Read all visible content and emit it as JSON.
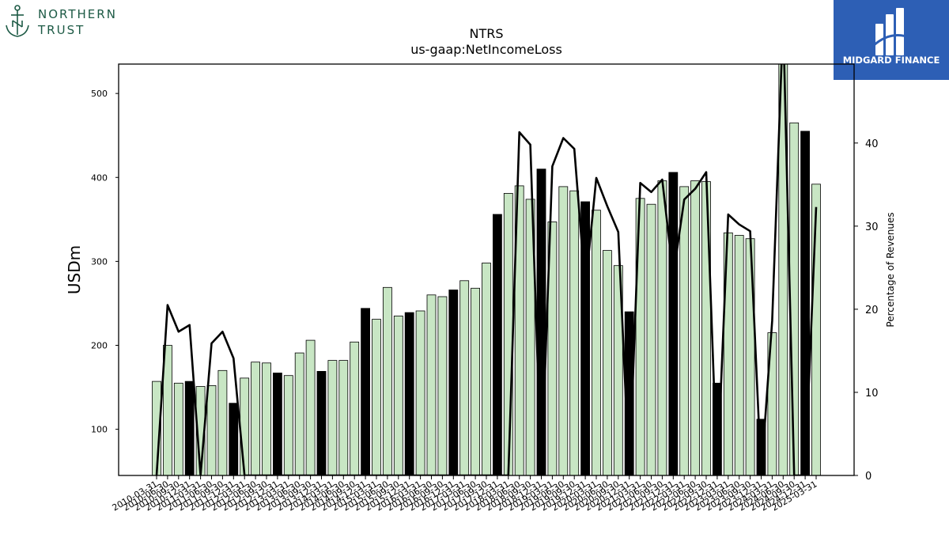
{
  "logos": {
    "left_brand_line1": "NORTHERN",
    "left_brand_line2": "TRUST",
    "right_brand": "MIDGARD FINANCE",
    "left_color": "#1d5a45",
    "right_bg": "#2d5fb5"
  },
  "chart_data": {
    "type": "bar",
    "title": "NTRS",
    "subtitle": "us-gaap:NetIncomeLoss",
    "ylabel": "USDm",
    "y2label": "Percentage of Revenues",
    "ylim": [
      45,
      535
    ],
    "y2lim": [
      0,
      49.5
    ],
    "yticks": [
      100,
      200,
      300,
      400,
      500
    ],
    "y2ticks": [
      0,
      10,
      20,
      30,
      40
    ],
    "bar_fill": "#c8e6c4",
    "highlight_fill": "#000000",
    "line_color": "#000000",
    "categories": [
      "2010-03-31",
      "2010-06-30",
      "2010-09-30",
      "2010-12-31",
      "2011-03-31",
      "2011-06-30",
      "2011-09-30",
      "2011-12-31",
      "2012-03-31",
      "2012-06-30",
      "2012-09-30",
      "2012-12-31",
      "2013-03-31",
      "2013-06-30",
      "2013-09-30",
      "2013-12-31",
      "2014-03-31",
      "2014-06-30",
      "2014-09-30",
      "2014-12-31",
      "2015-03-31",
      "2015-06-30",
      "2015-09-30",
      "2015-12-31",
      "2016-03-31",
      "2016-06-30",
      "2016-09-30",
      "2016-12-31",
      "2017-03-31",
      "2017-06-30",
      "2017-09-30",
      "2017-12-31",
      "2018-03-31",
      "2018-06-30",
      "2018-09-30",
      "2018-12-31",
      "2019-03-31",
      "2019-06-30",
      "2019-09-30",
      "2019-12-31",
      "2020-03-31",
      "2020-06-30",
      "2020-09-30",
      "2020-12-31",
      "2021-03-31",
      "2021-06-30",
      "2021-09-30",
      "2021-12-31",
      "2022-03-31",
      "2022-06-30",
      "2022-09-30",
      "2022-12-31",
      "2023-03-31",
      "2023-06-30",
      "2023-09-30",
      "2023-12-31",
      "2024-03-31",
      "2024-06-30",
      "2024-09-30",
      "2024-12-31",
      "2025-03-31"
    ],
    "xtick_labels": [
      "2010-03-31",
      "2010-06-30",
      "2010-09-30",
      "2010-12-31",
      "2011-03-31",
      "2011-06-30",
      "2011-09-30",
      "2011-12-31",
      "2012-03-31",
      "2012-06-30",
      "2012-09-30",
      "2012-12-31",
      "2013-03-31",
      "2013-06-30",
      "2013-09-30",
      "2013-12-31",
      "2014-03-31",
      "2014-06-30",
      "2014-09-30",
      "2014-12-31",
      "2015-03-31",
      "2015-06-30",
      "2015-09-30",
      "2015-12-31",
      "2016-03-31",
      "2016-06-30",
      "2016-09-30",
      "2016-12-31",
      "2017-03-31",
      "2017-06-30",
      "2017-09-30",
      "2017-12-31",
      "2018-03-31",
      "2018-06-30",
      "2018-09-30",
      "2018-12-31",
      "2019-03-31",
      "2019-06-30",
      "2019-09-30",
      "2019-12-31",
      "2020-03-31",
      "2020-06-30",
      "2020-09-30",
      "2020-12-31",
      "2021-03-31",
      "2021-06-30",
      "2021-09-30",
      "2021-12-31",
      "2022-03-31",
      "2022-06-30",
      "2022-09-30",
      "2022-12-31",
      "2023-03-31",
      "2023-06-30",
      "2023-09-30",
      "2023-12-31",
      "2024-03-31",
      "2024-06-30",
      "2024-09-30",
      "2024-12-31",
      "2025-03-31"
    ],
    "values": [
      157,
      200,
      155,
      157,
      151,
      152,
      170,
      131,
      161,
      180,
      179,
      167,
      164,
      191,
      206,
      169,
      182,
      182,
      204,
      244,
      231,
      269,
      235,
      239,
      241,
      260,
      258,
      266,
      277,
      268,
      298,
      356,
      381,
      390,
      374,
      410,
      347,
      389,
      384,
      371,
      361,
      313,
      295,
      240,
      375,
      368,
      396,
      406,
      389,
      396,
      395,
      155,
      334,
      331,
      327,
      112,
      215,
      560,
      465,
      455,
      392
    ],
    "highlight": [
      false,
      false,
      false,
      true,
      false,
      false,
      false,
      true,
      false,
      false,
      false,
      true,
      false,
      false,
      false,
      true,
      false,
      false,
      false,
      true,
      false,
      false,
      false,
      true,
      false,
      false,
      false,
      true,
      false,
      false,
      false,
      true,
      false,
      false,
      false,
      true,
      false,
      false,
      false,
      true,
      false,
      false,
      false,
      true,
      false,
      false,
      false,
      true,
      false,
      false,
      false,
      true,
      false,
      false,
      false,
      true,
      false,
      false,
      false,
      true,
      false
    ],
    "pct_values": [
      0,
      20.5,
      17.3,
      18.1,
      0,
      15.9,
      17.3,
      14.1,
      0,
      0,
      0,
      0,
      0,
      0,
      0,
      0,
      0,
      0,
      0,
      0,
      0,
      0,
      0,
      0,
      0,
      0,
      0,
      0,
      0,
      0,
      0,
      0,
      0,
      41.3,
      39.8,
      0,
      37.2,
      40.6,
      39.3,
      22.5,
      35.8,
      32.4,
      29.3,
      0,
      35.2,
      34.1,
      35.6,
      24.0,
      33.2,
      34.5,
      36.5,
      0,
      31.4,
      30.2,
      29.4,
      0,
      18.6,
      55,
      0,
      0,
      32.3
    ],
    "grid": false,
    "legend": "none"
  }
}
